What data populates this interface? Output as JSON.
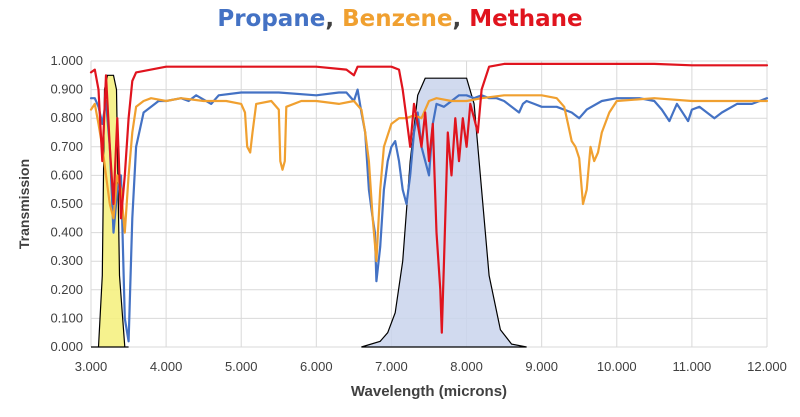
{
  "chart_data": {
    "type": "line",
    "title_parts": [
      {
        "text": "Propane",
        "color": "#4472C4"
      },
      {
        "text": ", ",
        "color": "#404040"
      },
      {
        "text": "Benzene",
        "color": "#F0A030"
      },
      {
        "text": ", ",
        "color": "#404040"
      },
      {
        "text": "Methane",
        "color": "#E0141E"
      }
    ],
    "xlabel": "Wavelength (microns)",
    "ylabel": "Transmission",
    "xlim": [
      3,
      12
    ],
    "ylim": [
      0,
      1
    ],
    "x_ticks": [
      "3.000",
      "4.000",
      "5.000",
      "6.000",
      "7.000",
      "8.000",
      "9.000",
      "10.000",
      "11.000",
      "12.000"
    ],
    "y_ticks": [
      "0.000",
      "0.100",
      "0.200",
      "0.300",
      "0.400",
      "0.500",
      "0.600",
      "0.700",
      "0.800",
      "0.900",
      "1.000"
    ],
    "grid": true,
    "series": [
      {
        "name": "Propane",
        "color": "#4472C4",
        "points": [
          [
            3.0,
            0.87
          ],
          [
            3.05,
            0.87
          ],
          [
            3.1,
            0.84
          ],
          [
            3.15,
            0.78
          ],
          [
            3.2,
            0.86
          ],
          [
            3.25,
            0.7
          ],
          [
            3.3,
            0.4
          ],
          [
            3.35,
            0.55
          ],
          [
            3.4,
            0.6
          ],
          [
            3.45,
            0.1
          ],
          [
            3.5,
            0.02
          ],
          [
            3.55,
            0.45
          ],
          [
            3.6,
            0.7
          ],
          [
            3.7,
            0.82
          ],
          [
            3.8,
            0.84
          ],
          [
            3.9,
            0.86
          ],
          [
            4.0,
            0.86
          ],
          [
            4.2,
            0.87
          ],
          [
            4.3,
            0.86
          ],
          [
            4.4,
            0.88
          ],
          [
            4.6,
            0.85
          ],
          [
            4.7,
            0.88
          ],
          [
            5.0,
            0.89
          ],
          [
            5.5,
            0.89
          ],
          [
            6.0,
            0.88
          ],
          [
            6.3,
            0.89
          ],
          [
            6.4,
            0.89
          ],
          [
            6.5,
            0.86
          ],
          [
            6.55,
            0.9
          ],
          [
            6.6,
            0.82
          ],
          [
            6.65,
            0.75
          ],
          [
            6.7,
            0.55
          ],
          [
            6.75,
            0.45
          ],
          [
            6.78,
            0.4
          ],
          [
            6.8,
            0.23
          ],
          [
            6.85,
            0.35
          ],
          [
            6.9,
            0.55
          ],
          [
            6.95,
            0.65
          ],
          [
            7.0,
            0.7
          ],
          [
            7.05,
            0.72
          ],
          [
            7.1,
            0.65
          ],
          [
            7.15,
            0.55
          ],
          [
            7.2,
            0.5
          ],
          [
            7.25,
            0.6
          ],
          [
            7.3,
            0.75
          ],
          [
            7.35,
            0.82
          ],
          [
            7.4,
            0.7
          ],
          [
            7.5,
            0.6
          ],
          [
            7.55,
            0.78
          ],
          [
            7.6,
            0.85
          ],
          [
            7.7,
            0.84
          ],
          [
            7.8,
            0.86
          ],
          [
            7.9,
            0.88
          ],
          [
            8.0,
            0.88
          ],
          [
            8.1,
            0.87
          ],
          [
            8.2,
            0.88
          ],
          [
            8.3,
            0.87
          ],
          [
            8.4,
            0.87
          ],
          [
            8.5,
            0.86
          ],
          [
            8.6,
            0.84
          ],
          [
            8.7,
            0.82
          ],
          [
            8.75,
            0.85
          ],
          [
            8.8,
            0.86
          ],
          [
            8.9,
            0.85
          ],
          [
            9.0,
            0.84
          ],
          [
            9.2,
            0.84
          ],
          [
            9.4,
            0.82
          ],
          [
            9.5,
            0.8
          ],
          [
            9.6,
            0.83
          ],
          [
            9.8,
            0.86
          ],
          [
            10.0,
            0.87
          ],
          [
            10.3,
            0.87
          ],
          [
            10.5,
            0.86
          ],
          [
            10.6,
            0.83
          ],
          [
            10.7,
            0.79
          ],
          [
            10.75,
            0.82
          ],
          [
            10.8,
            0.85
          ],
          [
            10.9,
            0.81
          ],
          [
            10.95,
            0.79
          ],
          [
            11.0,
            0.83
          ],
          [
            11.1,
            0.84
          ],
          [
            11.2,
            0.82
          ],
          [
            11.3,
            0.8
          ],
          [
            11.4,
            0.82
          ],
          [
            11.6,
            0.85
          ],
          [
            11.8,
            0.85
          ],
          [
            12.0,
            0.87
          ]
        ]
      },
      {
        "name": "Benzene",
        "color": "#F0A030",
        "points": [
          [
            3.0,
            0.83
          ],
          [
            3.05,
            0.85
          ],
          [
            3.1,
            0.78
          ],
          [
            3.15,
            0.7
          ],
          [
            3.2,
            0.6
          ],
          [
            3.25,
            0.5
          ],
          [
            3.3,
            0.45
          ],
          [
            3.35,
            0.6
          ],
          [
            3.4,
            0.55
          ],
          [
            3.45,
            0.4
          ],
          [
            3.5,
            0.6
          ],
          [
            3.55,
            0.75
          ],
          [
            3.6,
            0.84
          ],
          [
            3.7,
            0.86
          ],
          [
            3.8,
            0.87
          ],
          [
            4.0,
            0.86
          ],
          [
            4.2,
            0.87
          ],
          [
            4.5,
            0.86
          ],
          [
            4.8,
            0.86
          ],
          [
            5.0,
            0.85
          ],
          [
            5.05,
            0.82
          ],
          [
            5.08,
            0.7
          ],
          [
            5.12,
            0.68
          ],
          [
            5.15,
            0.75
          ],
          [
            5.2,
            0.85
          ],
          [
            5.4,
            0.86
          ],
          [
            5.5,
            0.83
          ],
          [
            5.52,
            0.65
          ],
          [
            5.55,
            0.62
          ],
          [
            5.58,
            0.65
          ],
          [
            5.6,
            0.84
          ],
          [
            5.8,
            0.86
          ],
          [
            6.0,
            0.86
          ],
          [
            6.3,
            0.85
          ],
          [
            6.5,
            0.86
          ],
          [
            6.6,
            0.83
          ],
          [
            6.65,
            0.75
          ],
          [
            6.7,
            0.65
          ],
          [
            6.75,
            0.45
          ],
          [
            6.8,
            0.3
          ],
          [
            6.85,
            0.55
          ],
          [
            6.9,
            0.7
          ],
          [
            7.0,
            0.78
          ],
          [
            7.1,
            0.8
          ],
          [
            7.2,
            0.8
          ],
          [
            7.3,
            0.81
          ],
          [
            7.4,
            0.8
          ],
          [
            7.5,
            0.86
          ],
          [
            7.6,
            0.87
          ],
          [
            7.8,
            0.86
          ],
          [
            8.0,
            0.86
          ],
          [
            8.2,
            0.87
          ],
          [
            8.5,
            0.88
          ],
          [
            8.8,
            0.88
          ],
          [
            9.0,
            0.88
          ],
          [
            9.2,
            0.87
          ],
          [
            9.3,
            0.84
          ],
          [
            9.35,
            0.78
          ],
          [
            9.4,
            0.72
          ],
          [
            9.45,
            0.7
          ],
          [
            9.5,
            0.66
          ],
          [
            9.55,
            0.5
          ],
          [
            9.6,
            0.55
          ],
          [
            9.65,
            0.7
          ],
          [
            9.7,
            0.65
          ],
          [
            9.75,
            0.68
          ],
          [
            9.8,
            0.75
          ],
          [
            9.9,
            0.82
          ],
          [
            10.0,
            0.86
          ],
          [
            10.5,
            0.87
          ],
          [
            11.0,
            0.86
          ],
          [
            11.5,
            0.86
          ],
          [
            12.0,
            0.86
          ]
        ]
      },
      {
        "name": "Methane",
        "color": "#E0141E",
        "points": [
          [
            3.0,
            0.96
          ],
          [
            3.05,
            0.97
          ],
          [
            3.1,
            0.9
          ],
          [
            3.15,
            0.65
          ],
          [
            3.2,
            0.95
          ],
          [
            3.25,
            0.7
          ],
          [
            3.3,
            0.5
          ],
          [
            3.35,
            0.8
          ],
          [
            3.4,
            0.45
          ],
          [
            3.45,
            0.6
          ],
          [
            3.5,
            0.8
          ],
          [
            3.55,
            0.93
          ],
          [
            3.6,
            0.96
          ],
          [
            3.8,
            0.97
          ],
          [
            4.0,
            0.98
          ],
          [
            4.5,
            0.98
          ],
          [
            5.0,
            0.98
          ],
          [
            5.5,
            0.98
          ],
          [
            6.0,
            0.98
          ],
          [
            6.4,
            0.97
          ],
          [
            6.5,
            0.95
          ],
          [
            6.55,
            0.98
          ],
          [
            6.7,
            0.98
          ],
          [
            7.0,
            0.98
          ],
          [
            7.1,
            0.97
          ],
          [
            7.15,
            0.9
          ],
          [
            7.2,
            0.8
          ],
          [
            7.25,
            0.7
          ],
          [
            7.3,
            0.85
          ],
          [
            7.35,
            0.78
          ],
          [
            7.4,
            0.7
          ],
          [
            7.45,
            0.82
          ],
          [
            7.5,
            0.65
          ],
          [
            7.55,
            0.78
          ],
          [
            7.6,
            0.4
          ],
          [
            7.65,
            0.2
          ],
          [
            7.67,
            0.05
          ],
          [
            7.7,
            0.3
          ],
          [
            7.75,
            0.75
          ],
          [
            7.8,
            0.6
          ],
          [
            7.85,
            0.8
          ],
          [
            7.9,
            0.65
          ],
          [
            7.95,
            0.8
          ],
          [
            8.0,
            0.7
          ],
          [
            8.05,
            0.85
          ],
          [
            8.1,
            0.8
          ],
          [
            8.15,
            0.75
          ],
          [
            8.2,
            0.9
          ],
          [
            8.3,
            0.98
          ],
          [
            8.5,
            0.99
          ],
          [
            9.0,
            0.99
          ],
          [
            9.5,
            0.99
          ],
          [
            10.0,
            0.99
          ],
          [
            10.5,
            0.99
          ],
          [
            11.0,
            0.985
          ],
          [
            11.5,
            0.985
          ],
          [
            12.0,
            0.985
          ]
        ]
      }
    ],
    "filter_bands": [
      {
        "fill": "#F5F07A",
        "points": [
          [
            3.0,
            0
          ],
          [
            3.1,
            0
          ],
          [
            3.15,
            0.25
          ],
          [
            3.18,
            0.9
          ],
          [
            3.22,
            0.95
          ],
          [
            3.3,
            0.95
          ],
          [
            3.34,
            0.9
          ],
          [
            3.38,
            0.25
          ],
          [
            3.45,
            0
          ],
          [
            3.5,
            0
          ]
        ]
      },
      {
        "fill": "#C9D3EC",
        "points": [
          [
            6.6,
            0
          ],
          [
            6.85,
            0.02
          ],
          [
            6.95,
            0.05
          ],
          [
            7.05,
            0.12
          ],
          [
            7.15,
            0.3
          ],
          [
            7.25,
            0.65
          ],
          [
            7.35,
            0.88
          ],
          [
            7.45,
            0.94
          ],
          [
            8.0,
            0.94
          ],
          [
            8.1,
            0.85
          ],
          [
            8.2,
            0.55
          ],
          [
            8.3,
            0.25
          ],
          [
            8.45,
            0.06
          ],
          [
            8.6,
            0.01
          ],
          [
            8.8,
            0
          ]
        ]
      }
    ]
  }
}
